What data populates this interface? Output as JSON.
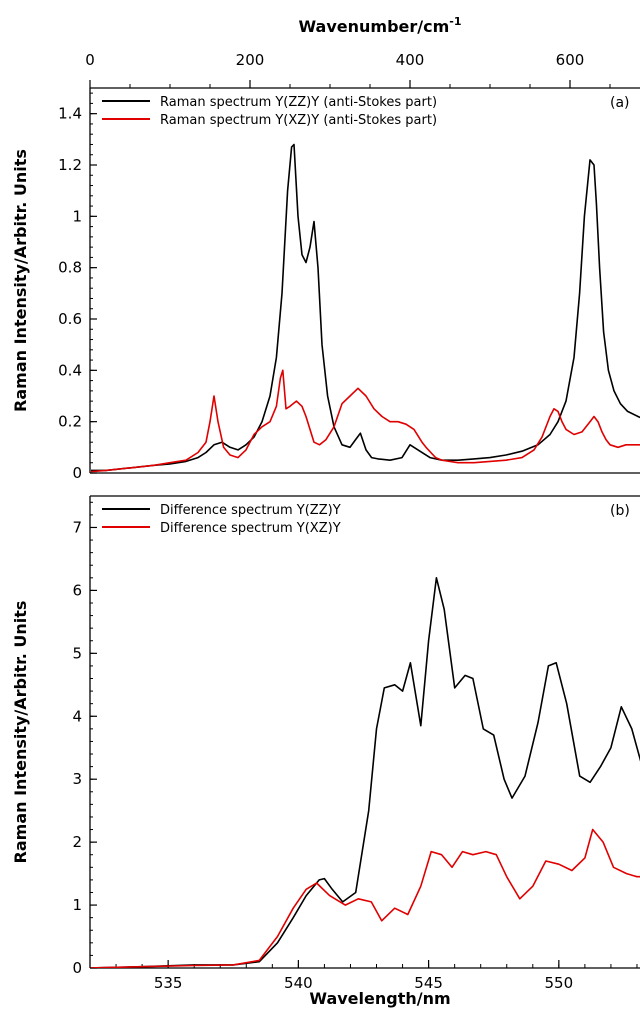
{
  "chart_data": [
    {
      "type": "line",
      "panel_label": "(a)",
      "top_xlabel": "Wavenumber/cm",
      "top_xlabel_sup": "-1",
      "top_xlim": [
        0,
        700
      ],
      "top_xticks": [
        "0",
        "200",
        "400",
        "600"
      ],
      "top_xtick_values": [
        0,
        200,
        400,
        600
      ],
      "ylabel": "Raman Intensity/Arbitr. Units",
      "ylim": [
        0,
        1.5
      ],
      "yticks": [
        "0",
        "0.2",
        "0.4",
        "0.6",
        "0.8",
        "1",
        "1.2",
        "1.4"
      ],
      "ytick_values": [
        0,
        0.2,
        0.4,
        0.6,
        0.8,
        1.0,
        1.2,
        1.4
      ],
      "legend_position": "top-left",
      "series": [
        {
          "name": "Raman spectrum Y(ZZ)Y (anti-Stokes part)",
          "color": "#000000",
          "x": [
            0,
            20,
            50,
            80,
            100,
            120,
            135,
            145,
            155,
            165,
            175,
            185,
            195,
            205,
            215,
            225,
            233,
            240,
            247,
            252,
            255,
            260,
            265,
            270,
            275,
            280,
            285,
            290,
            297,
            305,
            315,
            325,
            332,
            338,
            345,
            352,
            360,
            375,
            390,
            400,
            410,
            425,
            440,
            460,
            480,
            500,
            520,
            540,
            560,
            575,
            585,
            595,
            605,
            612,
            618,
            625,
            630,
            633,
            637,
            642,
            648,
            655,
            663,
            672,
            685,
            700
          ],
          "y": [
            0.01,
            0.01,
            0.02,
            0.03,
            0.035,
            0.045,
            0.06,
            0.08,
            0.11,
            0.12,
            0.1,
            0.09,
            0.11,
            0.14,
            0.2,
            0.3,
            0.45,
            0.7,
            1.1,
            1.27,
            1.28,
            1.0,
            0.85,
            0.82,
            0.88,
            0.98,
            0.8,
            0.5,
            0.3,
            0.18,
            0.11,
            0.1,
            0.13,
            0.155,
            0.09,
            0.06,
            0.055,
            0.05,
            0.06,
            0.11,
            0.09,
            0.06,
            0.05,
            0.05,
            0.055,
            0.06,
            0.07,
            0.085,
            0.11,
            0.15,
            0.2,
            0.28,
            0.45,
            0.7,
            1.0,
            1.22,
            1.2,
            1.05,
            0.8,
            0.55,
            0.4,
            0.32,
            0.27,
            0.24,
            0.22,
            0.2
          ]
        },
        {
          "name": "Raman spectrum Y(XZ)Y (anti-Stokes part)",
          "color": "#e00000",
          "x": [
            0,
            20,
            50,
            80,
            100,
            120,
            135,
            145,
            150,
            155,
            160,
            167,
            175,
            185,
            195,
            205,
            215,
            225,
            233,
            238,
            241,
            245,
            250,
            258,
            265,
            270,
            275,
            280,
            287,
            295,
            305,
            315,
            325,
            335,
            345,
            355,
            365,
            375,
            385,
            395,
            405,
            415,
            420,
            426,
            432,
            440,
            460,
            480,
            500,
            520,
            540,
            555,
            565,
            575,
            580,
            585,
            590,
            595,
            605,
            615,
            625,
            630,
            635,
            640,
            645,
            650,
            660,
            670,
            685,
            700
          ],
          "y": [
            0.005,
            0.01,
            0.02,
            0.03,
            0.04,
            0.05,
            0.08,
            0.12,
            0.2,
            0.3,
            0.2,
            0.1,
            0.07,
            0.06,
            0.09,
            0.15,
            0.18,
            0.2,
            0.26,
            0.37,
            0.4,
            0.25,
            0.26,
            0.28,
            0.26,
            0.22,
            0.17,
            0.12,
            0.11,
            0.13,
            0.18,
            0.27,
            0.3,
            0.33,
            0.3,
            0.25,
            0.22,
            0.2,
            0.2,
            0.19,
            0.17,
            0.12,
            0.1,
            0.08,
            0.06,
            0.05,
            0.04,
            0.04,
            0.045,
            0.05,
            0.06,
            0.09,
            0.14,
            0.22,
            0.25,
            0.24,
            0.2,
            0.17,
            0.15,
            0.16,
            0.2,
            0.22,
            0.2,
            0.16,
            0.13,
            0.11,
            0.1,
            0.11,
            0.11,
            0.11
          ]
        }
      ]
    },
    {
      "type": "line",
      "panel_label": "(b)",
      "xlabel": "Wavelength/nm",
      "xlim": [
        532.0,
        553.5
      ],
      "xticks": [
        "535",
        "540",
        "545",
        "550"
      ],
      "xtick_values": [
        535,
        540,
        545,
        550
      ],
      "ylabel": "Raman Intensity/Arbitr. Units",
      "ylim": [
        0,
        7.5
      ],
      "yticks": [
        "0",
        "1",
        "2",
        "3",
        "4",
        "5",
        "6",
        "7"
      ],
      "ytick_values": [
        0,
        1,
        2,
        3,
        4,
        5,
        6,
        7
      ],
      "legend_position": "top-left",
      "series": [
        {
          "name": "Difference spectrum Y(ZZ)Y",
          "color": "#000000",
          "x": [
            532,
            534,
            536,
            537.5,
            538.5,
            539.2,
            539.8,
            540.3,
            540.8,
            541.0,
            541.3,
            541.7,
            542.2,
            542.7,
            543.0,
            543.3,
            543.7,
            544.0,
            544.3,
            544.7,
            545.0,
            545.3,
            545.6,
            546.0,
            546.4,
            546.7,
            547.1,
            547.5,
            547.9,
            548.2,
            548.7,
            549.2,
            549.6,
            549.9,
            550.3,
            550.8,
            551.2,
            551.6,
            552.0,
            552.4,
            552.8,
            553.2,
            553.5
          ],
          "y": [
            0.0,
            0.02,
            0.05,
            0.05,
            0.1,
            0.4,
            0.8,
            1.15,
            1.4,
            1.42,
            1.25,
            1.05,
            1.2,
            2.5,
            3.8,
            4.45,
            4.5,
            4.4,
            4.85,
            3.85,
            5.2,
            6.2,
            5.7,
            4.45,
            4.65,
            4.6,
            3.8,
            3.7,
            3.0,
            2.7,
            3.05,
            3.9,
            4.8,
            4.85,
            4.2,
            3.05,
            2.95,
            3.2,
            3.5,
            4.15,
            3.8,
            3.2,
            2.9
          ]
        },
        {
          "name": "Difference spectrum Y(XZ)Y",
          "color": "#e00000",
          "x": [
            532,
            534,
            536,
            537.5,
            538.5,
            539.2,
            539.8,
            540.3,
            540.7,
            541.2,
            541.8,
            542.3,
            542.8,
            543.2,
            543.7,
            544.2,
            544.7,
            545.1,
            545.5,
            545.9,
            546.3,
            546.7,
            547.2,
            547.6,
            548.0,
            548.5,
            549.0,
            549.5,
            550.0,
            550.5,
            551.0,
            551.3,
            551.7,
            552.1,
            552.6,
            553.0,
            553.5
          ],
          "y": [
            0.0,
            0.02,
            0.04,
            0.05,
            0.12,
            0.5,
            0.95,
            1.25,
            1.35,
            1.15,
            1.0,
            1.1,
            1.05,
            0.75,
            0.95,
            0.85,
            1.3,
            1.85,
            1.8,
            1.6,
            1.85,
            1.8,
            1.85,
            1.8,
            1.45,
            1.1,
            1.3,
            1.7,
            1.65,
            1.55,
            1.75,
            2.2,
            2.0,
            1.6,
            1.5,
            1.45,
            1.45
          ]
        }
      ]
    }
  ]
}
